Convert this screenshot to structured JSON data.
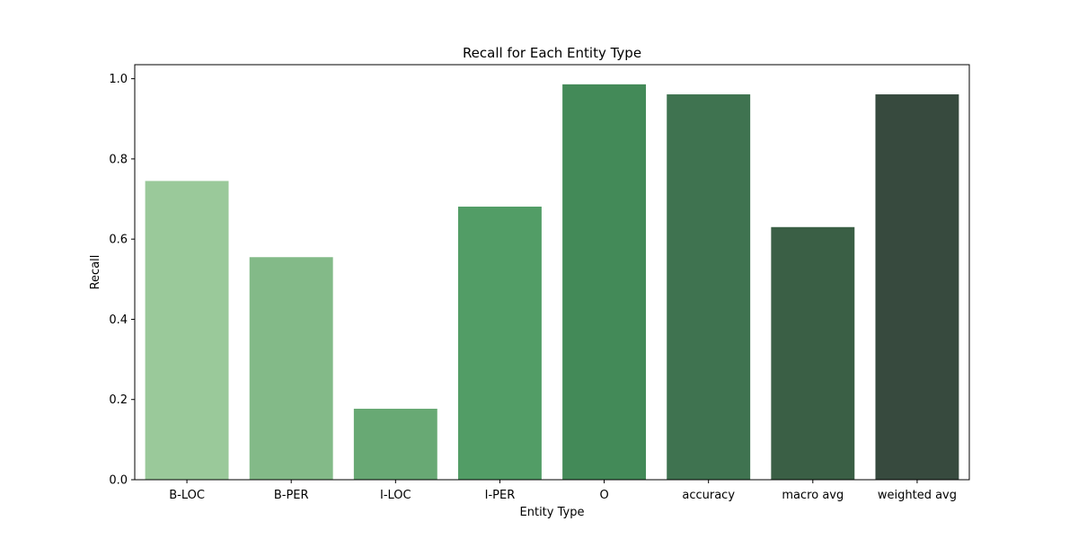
{
  "chart_data": {
    "type": "bar",
    "title": "Recall for Each Entity Type",
    "xlabel": "Entity Type",
    "ylabel": "Recall",
    "categories": [
      "B-LOC",
      "B-PER",
      "I-LOC",
      "I-PER",
      "O",
      "accuracy",
      "macro avg",
      "weighted avg"
    ],
    "values": [
      0.745,
      0.555,
      0.177,
      0.681,
      0.986,
      0.961,
      0.63,
      0.961
    ],
    "colors": [
      "#9ac99a",
      "#83ba88",
      "#68a974",
      "#529d66",
      "#438a58",
      "#3f7350",
      "#3a5f45",
      "#374a3e"
    ],
    "ylim": [
      0,
      1.035
    ],
    "yticks": [
      0.0,
      0.2,
      0.4,
      0.6,
      0.8,
      1.0
    ],
    "ytick_labels": [
      "0.0",
      "0.2",
      "0.4",
      "0.6",
      "0.8",
      "1.0"
    ],
    "grid": false,
    "legend": "none"
  }
}
